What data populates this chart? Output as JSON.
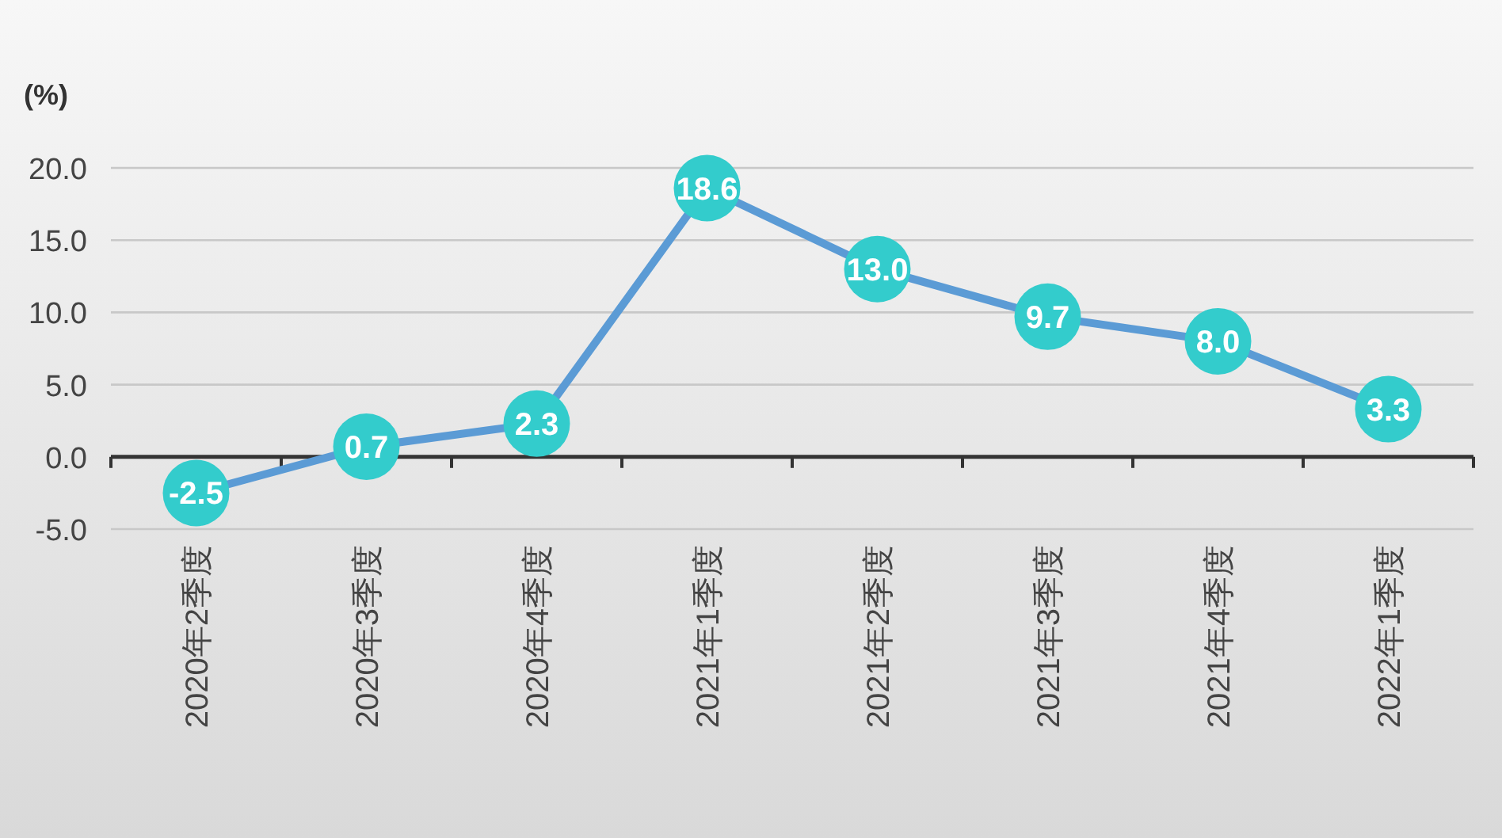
{
  "chart_data": {
    "type": "line",
    "ylabel": "(%)",
    "categories": [
      "2020年2季度",
      "2020年3季度",
      "2020年4季度",
      "2021年1季度",
      "2021年2季度",
      "2021年3季度",
      "2021年4季度",
      "2022年1季度"
    ],
    "series": [
      {
        "color": "#5b9bd5",
        "values": [
          -2.5,
          0.7,
          2.3,
          18.6,
          13.0,
          9.7,
          8.0,
          3.3
        ],
        "value_labels": [
          "-2.5",
          "0.7",
          "2.3",
          "18.6",
          "13.0",
          "9.7",
          "8.0",
          "3.3"
        ]
      }
    ],
    "colors": [
      "#33cccc",
      "#33cccc",
      "#33cccc",
      "#33cccc",
      "#33cccc",
      "#33cccc",
      "#33cccc",
      "#33cccc"
    ],
    "ylim": [
      -5,
      20
    ],
    "yticks": [
      {
        "value": -5,
        "label": "-5.0"
      },
      {
        "value": 0,
        "label": "0.0"
      },
      {
        "value": 5,
        "label": "5.0"
      },
      {
        "value": 10,
        "label": "10.0"
      },
      {
        "value": 15,
        "label": "15.0"
      },
      {
        "value": 20,
        "label": "20.0"
      }
    ],
    "grid": "y",
    "marker": "circle"
  }
}
